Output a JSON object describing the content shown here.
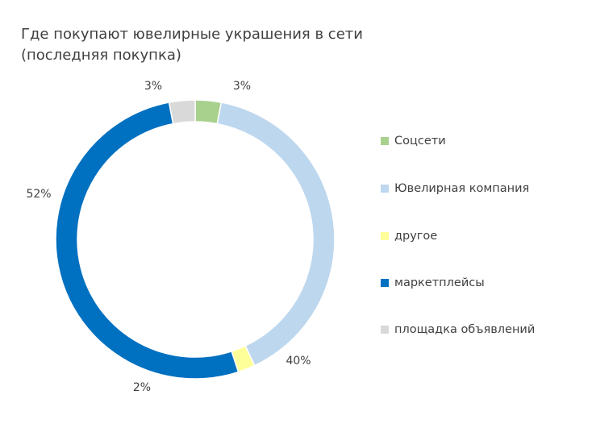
{
  "chart_data": {
    "type": "pie",
    "title": "Где покупают ювелирные украшения в сети (последняя покупка)",
    "categories": [
      "Соцсети",
      "Ювелирная компания",
      "другое",
      "маркетплейсы",
      "площадка объявлений"
    ],
    "values": [
      3,
      40,
      2,
      52,
      3
    ],
    "value_labels": [
      "3%",
      "40%",
      "2%",
      "52%",
      "3%"
    ],
    "colors": [
      "#a9d18e",
      "#bdd7ee",
      "#ffff99",
      "#0070c0",
      "#d9d9d9"
    ],
    "legend_position": "right",
    "donut": true
  }
}
